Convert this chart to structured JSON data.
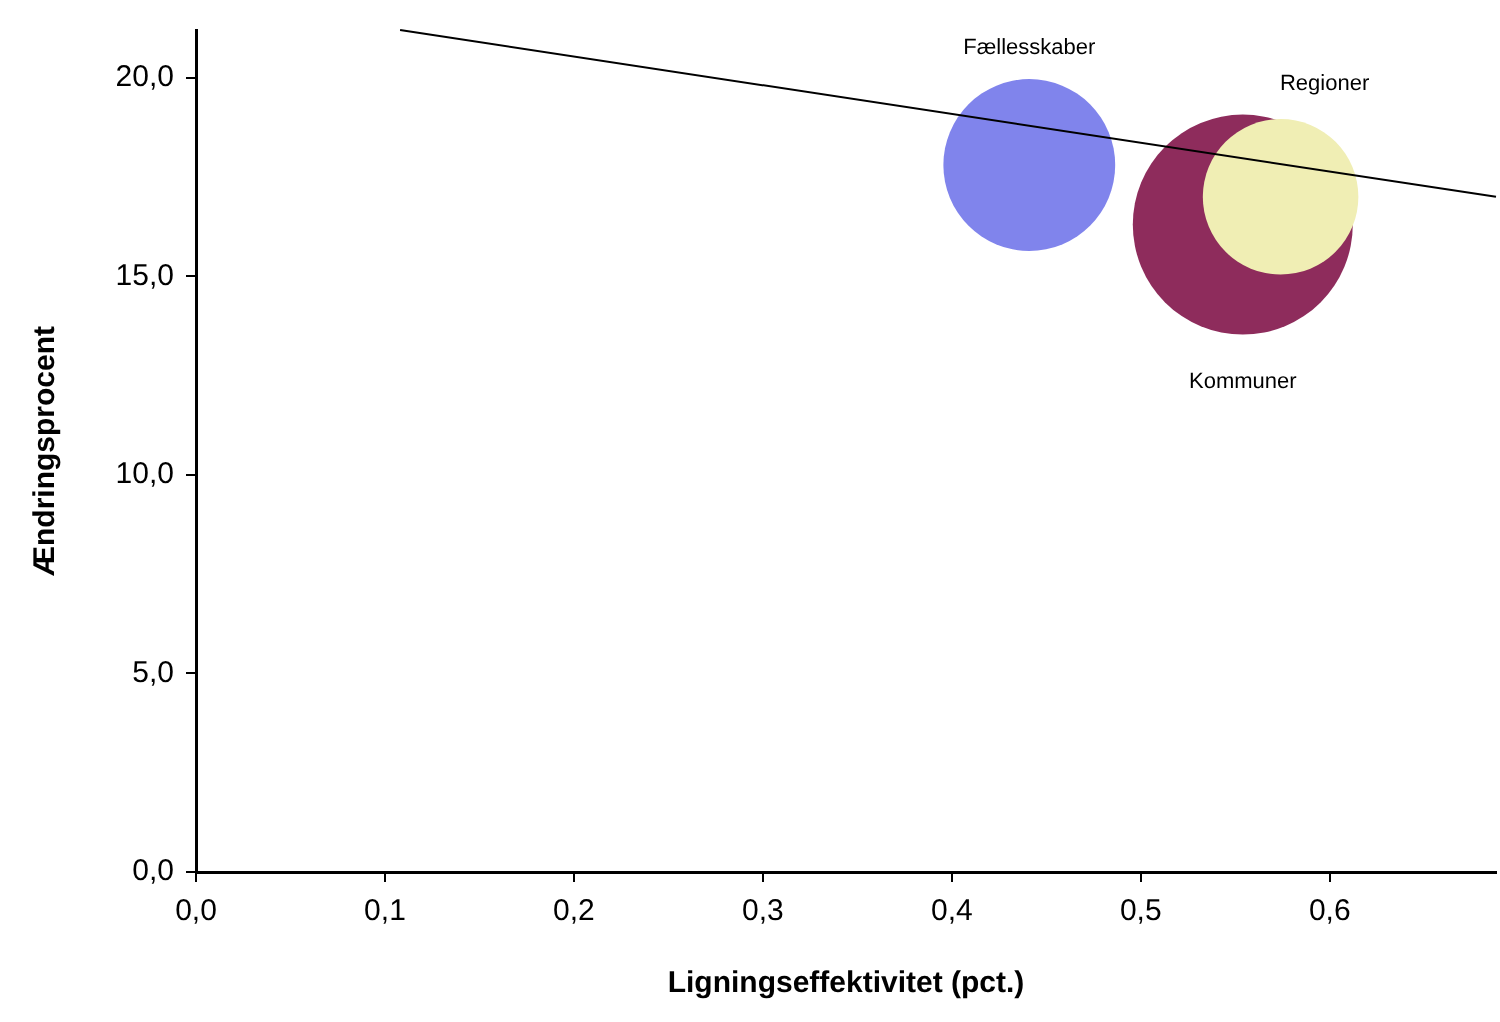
{
  "chart_data": {
    "type": "bubble",
    "xlabel": "Ligningseffektivitet (pct.)",
    "ylabel": "Ændringsprocent",
    "xlim": [
      0,
      0.688
    ],
    "ylim": [
      0,
      21.2
    ],
    "xticks": [
      {
        "value": 0,
        "label": "0,0"
      },
      {
        "value": 0.1,
        "label": "0,1"
      },
      {
        "value": 0.2,
        "label": "0,2"
      },
      {
        "value": 0.3,
        "label": "0,3"
      },
      {
        "value": 0.4,
        "label": "0,4"
      },
      {
        "value": 0.5,
        "label": "0,5"
      },
      {
        "value": 0.6,
        "label": "0,6"
      }
    ],
    "yticks": [
      {
        "value": 0,
        "label": "0,0"
      },
      {
        "value": 5,
        "label": "5,0"
      },
      {
        "value": 10,
        "label": "10,0"
      },
      {
        "value": 15,
        "label": "15,0"
      },
      {
        "value": 20,
        "label": "20,0"
      }
    ],
    "series": [
      {
        "name": "Fællesskaber",
        "color": "#8084ec",
        "x": [
          0.441
        ],
        "values": [
          17.8
        ],
        "sizes": [
          0.61
        ]
      },
      {
        "name": "Kommuner",
        "color": "#8e2c5c",
        "x": [
          0.554
        ],
        "values": [
          16.3
        ],
        "sizes": [
          1
        ]
      },
      {
        "name": "Regioner",
        "color": "#f0eeb4",
        "x": [
          0.574
        ],
        "values": [
          17.0
        ],
        "sizes": [
          0.5
        ]
      },
      {
        "type": "line",
        "color": "#000000",
        "x": [
          0.108,
          0.688
        ],
        "values": [
          21.2,
          17.0
        ]
      }
    ]
  }
}
